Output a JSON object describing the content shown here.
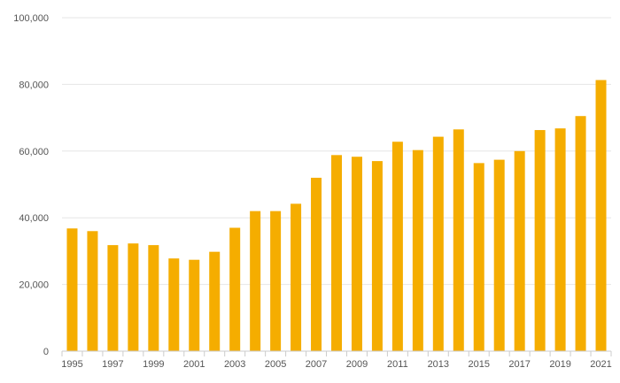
{
  "chart_data": {
    "type": "bar",
    "title": "",
    "xlabel": "",
    "ylabel": "",
    "categories": [
      "1995",
      "1996",
      "1997",
      "1998",
      "1999",
      "2000",
      "2001",
      "2002",
      "2003",
      "2004",
      "2005",
      "2006",
      "2007",
      "2008",
      "2009",
      "2010",
      "2011",
      "2012",
      "2013",
      "2014",
      "2015",
      "2016",
      "2017",
      "2018",
      "2019",
      "2020",
      "2021"
    ],
    "x_tick_labels": [
      "1995",
      "1997",
      "1999",
      "2001",
      "2003",
      "2005",
      "2007",
      "2009",
      "2011",
      "2013",
      "2015",
      "2017",
      "2019",
      "2021"
    ],
    "values": [
      36800,
      36000,
      31800,
      32300,
      31800,
      27800,
      27400,
      29800,
      37000,
      42000,
      42000,
      44200,
      52000,
      58800,
      58300,
      57000,
      62800,
      60300,
      64300,
      66500,
      56400,
      57400,
      60000,
      66300,
      66800,
      70500,
      81300
    ],
    "ylim": [
      0,
      100000
    ],
    "y_ticks": [
      0,
      20000,
      40000,
      60000,
      80000,
      100000
    ],
    "y_tick_labels": [
      "0",
      "20,000",
      "40,000",
      "60,000",
      "80,000",
      "100,000"
    ],
    "grid": true,
    "bar_color": "#f5ad00",
    "grid_color": "#e6e6e6",
    "axis_color": "#cccccc"
  }
}
